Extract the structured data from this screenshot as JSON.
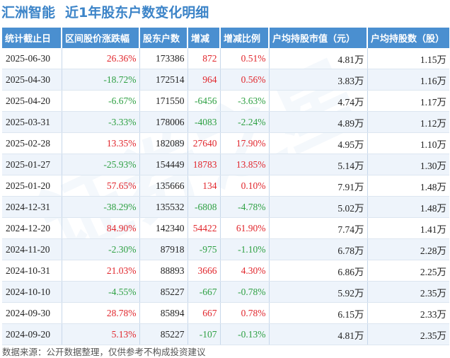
{
  "header": {
    "stock_name": "汇洲智能",
    "title": "近1年股东户数变化明细"
  },
  "watermark": "证券之星",
  "colors": {
    "header_bg": "#4a8fd0",
    "positive": "#e1262c",
    "negative": "#2ea043",
    "title": "#3c84c8"
  },
  "table": {
    "columns": [
      "统计截止日",
      "区间股价涨跌幅",
      "股东户数",
      "增减",
      "增减比例",
      "户均持股市值（元）",
      "户均持股数（股）"
    ],
    "rows": [
      {
        "date": "2025-06-30",
        "price_change": "26.36%",
        "holders": "173386",
        "change": "872",
        "change_ratio": "0.51%",
        "avg_value": "4.81万",
        "avg_shares": "1.15万"
      },
      {
        "date": "2025-04-30",
        "price_change": "-18.72%",
        "holders": "172514",
        "change": "964",
        "change_ratio": "0.56%",
        "avg_value": "3.83万",
        "avg_shares": "1.16万"
      },
      {
        "date": "2025-04-20",
        "price_change": "-6.67%",
        "holders": "171550",
        "change": "-6456",
        "change_ratio": "-3.63%",
        "avg_value": "4.74万",
        "avg_shares": "1.17万"
      },
      {
        "date": "2025-03-31",
        "price_change": "-3.33%",
        "holders": "178006",
        "change": "-4083",
        "change_ratio": "-2.24%",
        "avg_value": "4.89万",
        "avg_shares": "1.12万"
      },
      {
        "date": "2025-02-28",
        "price_change": "13.35%",
        "holders": "182089",
        "change": "27640",
        "change_ratio": "17.90%",
        "avg_value": "4.95万",
        "avg_shares": "1.10万"
      },
      {
        "date": "2025-01-27",
        "price_change": "-25.93%",
        "holders": "154449",
        "change": "18783",
        "change_ratio": "13.85%",
        "avg_value": "5.14万",
        "avg_shares": "1.30万"
      },
      {
        "date": "2025-01-20",
        "price_change": "57.65%",
        "holders": "135666",
        "change": "134",
        "change_ratio": "0.10%",
        "avg_value": "7.91万",
        "avg_shares": "1.48万"
      },
      {
        "date": "2024-12-31",
        "price_change": "-38.29%",
        "holders": "135532",
        "change": "-6808",
        "change_ratio": "-4.78%",
        "avg_value": "5.02万",
        "avg_shares": "1.48万"
      },
      {
        "date": "2024-12-20",
        "price_change": "84.90%",
        "holders": "142340",
        "change": "54422",
        "change_ratio": "61.90%",
        "avg_value": "7.74万",
        "avg_shares": "1.41万"
      },
      {
        "date": "2024-11-20",
        "price_change": "-2.30%",
        "holders": "87918",
        "change": "-975",
        "change_ratio": "-1.10%",
        "avg_value": "6.78万",
        "avg_shares": "2.28万"
      },
      {
        "date": "2024-10-31",
        "price_change": "21.03%",
        "holders": "88893",
        "change": "3666",
        "change_ratio": "4.30%",
        "avg_value": "6.86万",
        "avg_shares": "2.25万"
      },
      {
        "date": "2024-10-10",
        "price_change": "-4.55%",
        "holders": "85227",
        "change": "-667",
        "change_ratio": "-0.78%",
        "avg_value": "5.92万",
        "avg_shares": "2.35万"
      },
      {
        "date": "2024-09-30",
        "price_change": "28.78%",
        "holders": "85894",
        "change": "667",
        "change_ratio": "0.78%",
        "avg_value": "6.15万",
        "avg_shares": "2.33万"
      },
      {
        "date": "2024-09-20",
        "price_change": "5.13%",
        "holders": "85227",
        "change": "-107",
        "change_ratio": "-0.13%",
        "avg_value": "4.81万",
        "avg_shares": "2.35万"
      }
    ]
  },
  "footer": {
    "source": "数据来源：公开数据整理，仅供参考不构成投资建议"
  }
}
